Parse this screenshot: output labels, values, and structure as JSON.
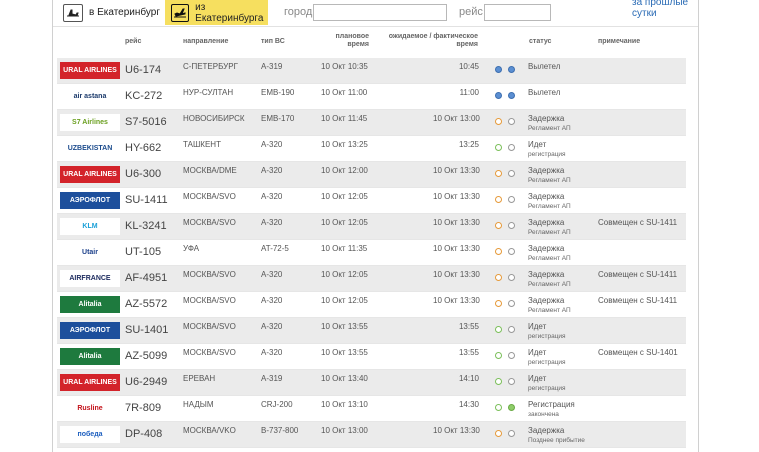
{
  "topbar": {
    "tab_arrival_label": "в Екатеринбург",
    "tab_departure_label": "из Екатеринбурга",
    "city_label": "город",
    "city_value": "",
    "flight_label": "рейс",
    "flight_value": "",
    "past_day_link": "за прошлые сутки"
  },
  "table": {
    "headers": {
      "flight": "рейс",
      "destination": "направление",
      "aircraft": "тип ВС",
      "scheduled": "плановое время",
      "actual": "ожидаемое / фактическое время",
      "status": "статус",
      "note": "примечание"
    },
    "rows": [
      {
        "logo": "URAL AIRLINES",
        "flight": "U6-174",
        "destination": "С-ПЕТЕРБУРГ",
        "aircraft": "A-319",
        "scheduled": "10 Окт 10:35",
        "actual": "10:45",
        "dots": [
          "blue",
          "blue"
        ],
        "status": "Вылетел",
        "status_sub": "",
        "note": ""
      },
      {
        "logo": "air astana",
        "flight": "KC-272",
        "destination": "НУР-СУЛТАН",
        "aircraft": "EMB-190",
        "scheduled": "10 Окт 11:00",
        "actual": "11:00",
        "dots": [
          "blue",
          "blue"
        ],
        "status": "Вылетел",
        "status_sub": "",
        "note": ""
      },
      {
        "logo": "S7 Airlines",
        "flight": "S7-5016",
        "destination": "НОВОСИБИРСК",
        "aircraft": "EMB-170",
        "scheduled": "10 Окт 11:45",
        "actual": "10 Окт 13:00",
        "dots": [
          "orange",
          "empty"
        ],
        "status": "Задержка",
        "status_sub": "Регламент АП",
        "note": ""
      },
      {
        "logo": "UZBEKISTAN",
        "flight": "HY-662",
        "destination": "ТАШКЕНТ",
        "aircraft": "A-320",
        "scheduled": "10 Окт 13:25",
        "actual": "13:25",
        "dots": [
          "green",
          "empty"
        ],
        "status": "Идет",
        "status_sub": "регистрация",
        "note": ""
      },
      {
        "logo": "URAL AIRLINES",
        "flight": "U6-300",
        "destination": "МОСКВА/DME",
        "aircraft": "A-320",
        "scheduled": "10 Окт 12:00",
        "actual": "10 Окт 13:30",
        "dots": [
          "orange",
          "empty"
        ],
        "status": "Задержка",
        "status_sub": "Регламент АП",
        "note": ""
      },
      {
        "logo": "АЭРОФЛОТ",
        "flight": "SU-1411",
        "destination": "МОСКВА/SVO",
        "aircraft": "A-320",
        "scheduled": "10 Окт 12:05",
        "actual": "10 Окт 13:30",
        "dots": [
          "orange",
          "empty"
        ],
        "status": "Задержка",
        "status_sub": "Регламент АП",
        "note": ""
      },
      {
        "logo": "KLM",
        "flight": "KL-3241",
        "destination": "МОСКВА/SVO",
        "aircraft": "A-320",
        "scheduled": "10 Окт 12:05",
        "actual": "10 Окт 13:30",
        "dots": [
          "orange",
          "empty"
        ],
        "status": "Задержка",
        "status_sub": "Регламент АП",
        "note": "Совмещен с SU-1411"
      },
      {
        "logo": "Utair",
        "flight": "UT-105",
        "destination": "УФА",
        "aircraft": "AT-72-5",
        "scheduled": "10 Окт 11:35",
        "actual": "10 Окт 13:30",
        "dots": [
          "orange",
          "empty"
        ],
        "status": "Задержка",
        "status_sub": "Регламент АП",
        "note": ""
      },
      {
        "logo": "AIRFRANCE",
        "flight": "AF-4951",
        "destination": "МОСКВА/SVO",
        "aircraft": "A-320",
        "scheduled": "10 Окт 12:05",
        "actual": "10 Окт 13:30",
        "dots": [
          "orange",
          "empty"
        ],
        "status": "Задержка",
        "status_sub": "Регламент АП",
        "note": "Совмещен с SU-1411"
      },
      {
        "logo": "Alitalia",
        "flight": "AZ-5572",
        "destination": "МОСКВА/SVO",
        "aircraft": "A-320",
        "scheduled": "10 Окт 12:05",
        "actual": "10 Окт 13:30",
        "dots": [
          "orange",
          "empty"
        ],
        "status": "Задержка",
        "status_sub": "Регламент АП",
        "note": "Совмещен с SU-1411"
      },
      {
        "logo": "АЭРОФЛОТ",
        "flight": "SU-1401",
        "destination": "МОСКВА/SVO",
        "aircraft": "A-320",
        "scheduled": "10 Окт 13:55",
        "actual": "13:55",
        "dots": [
          "green",
          "empty"
        ],
        "status": "Идет",
        "status_sub": "регистрация",
        "note": ""
      },
      {
        "logo": "Alitalia",
        "flight": "AZ-5099",
        "destination": "МОСКВА/SVO",
        "aircraft": "A-320",
        "scheduled": "10 Окт 13:55",
        "actual": "13:55",
        "dots": [
          "green",
          "empty"
        ],
        "status": "Идет",
        "status_sub": "регистрация",
        "note": "Совмещен с SU-1401"
      },
      {
        "logo": "URAL AIRLINES",
        "flight": "U6-2949",
        "destination": "ЕРЕВАН",
        "aircraft": "A-319",
        "scheduled": "10 Окт 13:40",
        "actual": "14:10",
        "dots": [
          "green",
          "empty"
        ],
        "status": "Идет",
        "status_sub": "регистрация",
        "note": ""
      },
      {
        "logo": "Rusline",
        "flight": "7R-809",
        "destination": "НАДЫМ",
        "aircraft": "CRJ-200",
        "scheduled": "10 Окт 13:10",
        "actual": "14:30",
        "dots": [
          "green",
          "green-fill"
        ],
        "status": "Регистрация",
        "status_sub": "закончена",
        "note": ""
      },
      {
        "logo": "победа",
        "flight": "DP-408",
        "destination": "МОСКВА/VKO",
        "aircraft": "B-737-800",
        "scheduled": "10 Окт 13:00",
        "actual": "10 Окт 13:30",
        "dots": [
          "orange",
          "empty"
        ],
        "status": "Задержка",
        "status_sub": "Позднее прибытие",
        "note": ""
      }
    ]
  },
  "colors": {
    "tab_active": "#f6df5f",
    "row_alt": "#ebebeb",
    "link": "#2a6bb5",
    "dot_blue": "#5b8fd2",
    "dot_orange": "#e69a3a",
    "dot_green": "#7bbf5a"
  },
  "logo_styles": {
    "URAL AIRLINES": {
      "bg": "#d3232a",
      "fg": "#ffffff"
    },
    "air astana": {
      "bg": "#ffffff",
      "fg": "#1b3a6b"
    },
    "S7 Airlines": {
      "bg": "#ffffff",
      "fg": "#6a9f1f"
    },
    "UZBEKISTAN": {
      "bg": "#ffffff",
      "fg": "#1a4a8c"
    },
    "АЭРОФЛОТ": {
      "bg": "#1d4f9c",
      "fg": "#ffffff"
    },
    "KLM": {
      "bg": "#ffffff",
      "fg": "#1aa0d8"
    },
    "Utair": {
      "bg": "#ffffff",
      "fg": "#1b3f8a"
    },
    "AIRFRANCE": {
      "bg": "#ffffff",
      "fg": "#1c2a5e"
    },
    "Alitalia": {
      "bg": "#1e7a3e",
      "fg": "#ffffff"
    },
    "Rusline": {
      "bg": "#ffffff",
      "fg": "#c4121a"
    },
    "победа": {
      "bg": "#ffffff",
      "fg": "#1d5fbf"
    }
  }
}
